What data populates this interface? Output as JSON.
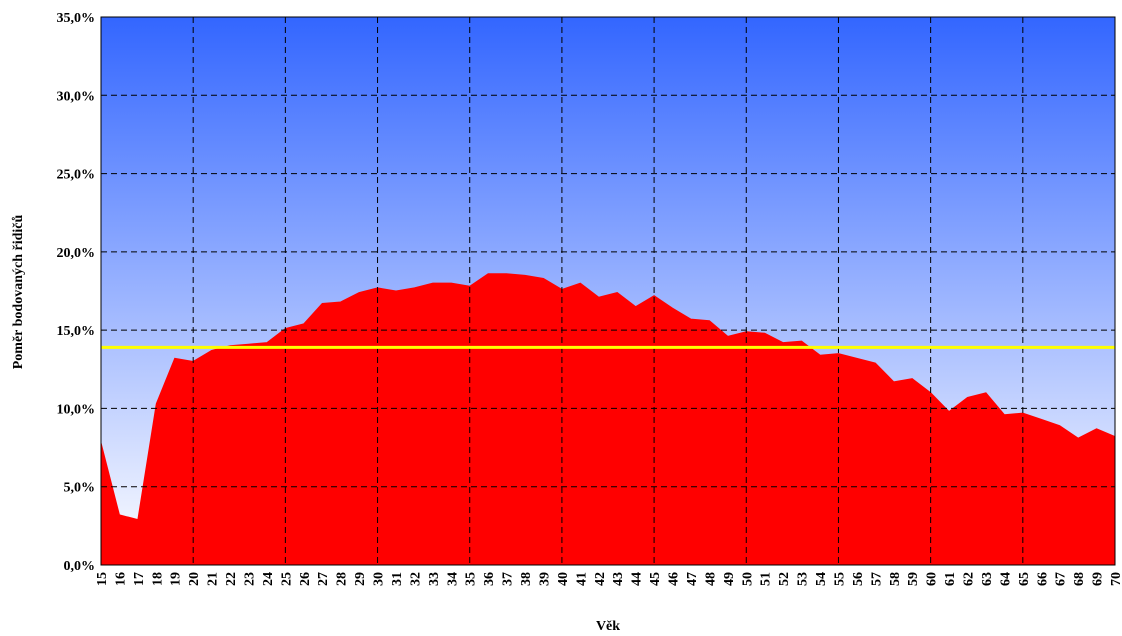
{
  "chart_data": {
    "type": "area",
    "y_label": "Poměr bodovaných řidičů",
    "x_label": "Věk",
    "categories": [
      "15",
      "16",
      "17",
      "18",
      "19",
      "20",
      "21",
      "22",
      "23",
      "24",
      "25",
      "26",
      "27",
      "28",
      "29",
      "30",
      "31",
      "32",
      "33",
      "34",
      "35",
      "36",
      "37",
      "38",
      "39",
      "40",
      "41",
      "42",
      "43",
      "44",
      "45",
      "46",
      "47",
      "48",
      "49",
      "50",
      "51",
      "52",
      "53",
      "54",
      "55",
      "56",
      "57",
      "58",
      "59",
      "60",
      "61",
      "62",
      "63",
      "64",
      "65",
      "66",
      "67",
      "68",
      "69",
      "70"
    ],
    "series": [
      {
        "color": "#ff0000",
        "values": [
          7.8,
          3.2,
          2.9,
          10.3,
          13.2,
          13.0,
          13.7,
          14.0,
          14.1,
          14.2,
          15.1,
          15.4,
          16.7,
          16.8,
          17.4,
          17.7,
          17.5,
          17.7,
          18.0,
          18.0,
          17.8,
          18.6,
          18.6,
          18.5,
          18.3,
          17.6,
          18.0,
          17.1,
          17.4,
          16.5,
          17.2,
          16.4,
          15.7,
          15.6,
          14.6,
          14.9,
          14.8,
          14.2,
          14.3,
          13.4,
          13.5,
          13.2,
          12.9,
          11.7,
          11.9,
          11.0,
          9.8,
          10.7,
          11.0,
          9.6,
          9.7,
          9.3,
          8.9,
          8.1,
          8.7,
          8.2
        ]
      }
    ],
    "reference_line": {
      "value": 13.9,
      "color": "#ffff00"
    },
    "ylim": [
      0,
      35
    ],
    "yticks": [
      {
        "value": 0,
        "label": "0,0%"
      },
      {
        "value": 5,
        "label": "5,0%"
      },
      {
        "value": 10,
        "label": "10,0%"
      },
      {
        "value": 15,
        "label": "15,0%"
      },
      {
        "value": 20,
        "label": "20,0%"
      },
      {
        "value": 25,
        "label": "25,0%"
      },
      {
        "value": 30,
        "label": "30,0%"
      },
      {
        "value": 35,
        "label": "35,0%"
      }
    ],
    "grid": true,
    "background_gradient": [
      "#3366ff",
      "#ffffff"
    ]
  }
}
